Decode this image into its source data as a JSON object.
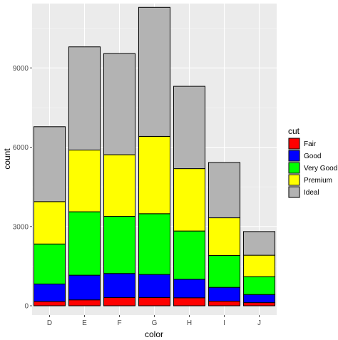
{
  "chart_data": {
    "type": "bar",
    "stacked": true,
    "categories": [
      "D",
      "E",
      "F",
      "G",
      "H",
      "I",
      "J"
    ],
    "series": [
      {
        "name": "Fair",
        "color": "#ff0000",
        "values": [
          163,
          224,
          312,
          314,
          303,
          175,
          119
        ]
      },
      {
        "name": "Good",
        "color": "#0000ff",
        "values": [
          662,
          933,
          909,
          871,
          702,
          522,
          307
        ]
      },
      {
        "name": "Very Good",
        "color": "#00ff00",
        "values": [
          1513,
          2400,
          2164,
          2299,
          1824,
          1204,
          678
        ]
      },
      {
        "name": "Premium",
        "color": "#ffff00",
        "values": [
          1603,
          2337,
          2331,
          2924,
          2360,
          1428,
          808
        ]
      },
      {
        "name": "Ideal",
        "color": "#b3b3b3",
        "values": [
          2834,
          3903,
          3826,
          4884,
          3115,
          2093,
          896
        ]
      }
    ],
    "xlabel": "color",
    "ylabel": "count",
    "yticks": [
      0,
      3000,
      6000,
      9000
    ],
    "ylim": [
      0,
      11300
    ],
    "legend_title": "cut",
    "legend_position": "right",
    "grid": true,
    "panel_background": "#ebebeb",
    "bar_outline": "#000000"
  }
}
